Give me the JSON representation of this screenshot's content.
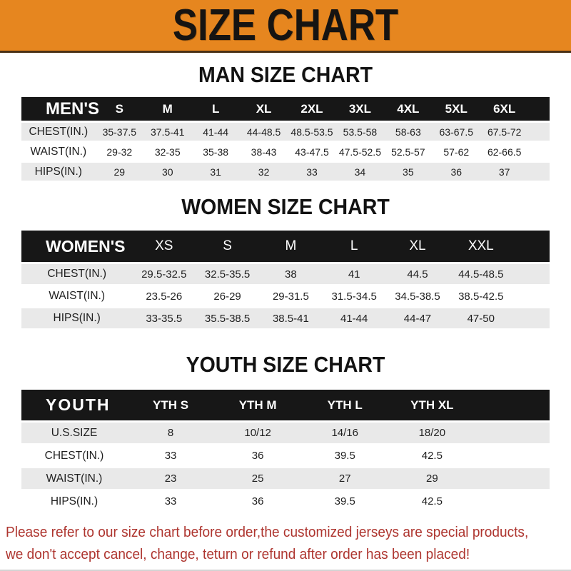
{
  "banner": {
    "title": "SIZE CHART"
  },
  "sections": [
    {
      "title": "MAN SIZE CHART",
      "table": {
        "header_label": "MEN'S",
        "columns": [
          "S",
          "M",
          "L",
          "XL",
          "2XL",
          "3XL",
          "4XL",
          "5XL",
          "6XL"
        ],
        "rows": [
          {
            "label": "CHEST(IN.)",
            "values": [
              "35-37.5",
              "37.5-41",
              "41-44",
              "44-48.5",
              "48.5-53.5",
              "53.5-58",
              "58-63",
              "63-67.5",
              "67.5-72"
            ]
          },
          {
            "label": "WAIST(IN.)",
            "values": [
              "29-32",
              "32-35",
              "35-38",
              "38-43",
              "43-47.5",
              "47.5-52.5",
              "52.5-57",
              "57-62",
              "62-66.5"
            ]
          },
          {
            "label": "HIPS(IN.)",
            "values": [
              "29",
              "30",
              "31",
              "32",
              "33",
              "34",
              "35",
              "36",
              "37"
            ]
          }
        ]
      }
    },
    {
      "title": "WOMEN SIZE CHART",
      "table": {
        "header_label": "WOMEN'S",
        "columns": [
          "XS",
          "S",
          "M",
          "L",
          "XL",
          "XXL"
        ],
        "rows": [
          {
            "label": "CHEST(IN.)",
            "values": [
              "29.5-32.5",
              "32.5-35.5",
              "38",
              "41",
              "44.5",
              "44.5-48.5"
            ]
          },
          {
            "label": "WAIST(IN.)",
            "values": [
              "23.5-26",
              "26-29",
              "29-31.5",
              "31.5-34.5",
              "34.5-38.5",
              "38.5-42.5"
            ]
          },
          {
            "label": "HIPS(IN.)",
            "values": [
              "33-35.5",
              "35.5-38.5",
              "38.5-41",
              "41-44",
              "44-47",
              "47-50"
            ]
          }
        ]
      }
    },
    {
      "title": "YOUTH SIZE CHART",
      "table": {
        "header_label": "YOUTH",
        "columns": [
          "YTH S",
          "YTH M",
          "YTH L",
          "YTH XL"
        ],
        "rows": [
          {
            "label": "U.S.SIZE",
            "values": [
              "8",
              "10/12",
              "14/16",
              "18/20"
            ]
          },
          {
            "label": "CHEST(IN.)",
            "values": [
              "33",
              "36",
              "39.5",
              "42.5"
            ]
          },
          {
            "label": "WAIST(IN.)",
            "values": [
              "23",
              "25",
              "27",
              "29"
            ]
          },
          {
            "label": "HIPS(IN.)",
            "values": [
              "33",
              "36",
              "39.5",
              "42.5"
            ]
          }
        ]
      }
    }
  ],
  "footer": {
    "line1": "Please refer to our size chart before order,the customized jerseys are special products,",
    "line2": "we don't accept cancel, change, teturn or refund after order has been placed!"
  },
  "colors": {
    "banner_bg": "#E6861F",
    "header_bar": "#171717",
    "row_alt": "#E9E9E9",
    "footer_text": "#AE352F"
  }
}
